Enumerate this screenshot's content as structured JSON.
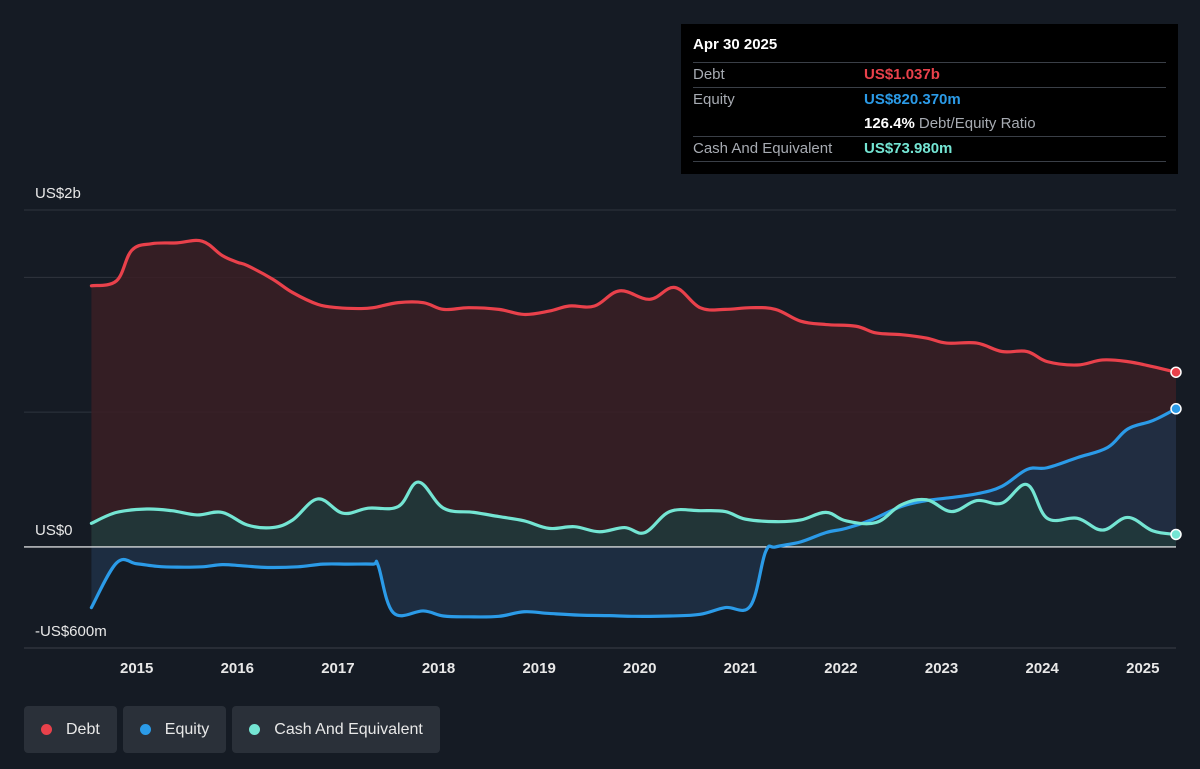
{
  "tooltip": {
    "date": "Apr 30 2025",
    "rows": [
      {
        "label": "Debt",
        "value": "US$1.037b",
        "color": "#e9414b"
      },
      {
        "label": "Equity",
        "value": "US$820.370m",
        "color": "#2b9be8"
      },
      {
        "ratio_value": "126.4%",
        "ratio_label": "Debt/Equity Ratio"
      },
      {
        "label": "Cash And Equivalent",
        "value": "US$73.980m",
        "color": "#74e5d3"
      }
    ]
  },
  "legend": [
    {
      "label": "Debt",
      "color": "#e9414b"
    },
    {
      "label": "Equity",
      "color": "#2b9be8"
    },
    {
      "label": "Cash And Equivalent",
      "color": "#74e5d3"
    }
  ],
  "chart_data": {
    "type": "area",
    "ylim": [
      -600,
      2000
    ],
    "y_tick_labels": [
      {
        "value": 2000,
        "label": "US$2b"
      },
      {
        "value": 0,
        "label": "US$0"
      },
      {
        "value": -600,
        "label": "-US$600m"
      }
    ],
    "x_tick_labels": [
      "2015",
      "2016",
      "2017",
      "2018",
      "2019",
      "2020",
      "2021",
      "2022",
      "2023",
      "2024",
      "2025"
    ],
    "x_ticks": [
      2015,
      2016,
      2017,
      2018,
      2019,
      2020,
      2021,
      2022,
      2023,
      2024,
      2025
    ],
    "xlim": [
      2013.88,
      2025.33
    ],
    "series": [
      {
        "name": "Debt",
        "color": "#e9414b",
        "fill": "#3a1f24",
        "x": [
          2014.55,
          2014.8,
          2014.95,
          2015.15,
          2015.4,
          2015.65,
          2015.85,
          2016.0,
          2016.1,
          2016.35,
          2016.55,
          2016.8,
          2017.0,
          2017.2,
          2017.35,
          2017.6,
          2017.85,
          2018.05,
          2018.3,
          2018.6,
          2018.85,
          2019.1,
          2019.3,
          2019.55,
          2019.8,
          2020.1,
          2020.35,
          2020.6,
          2020.85,
          2021.1,
          2021.35,
          2021.6,
          2021.85,
          2022.15,
          2022.35,
          2022.6,
          2022.85,
          2023.05,
          2023.35,
          2023.6,
          2023.85,
          2024.05,
          2024.35,
          2024.6,
          2024.85,
          2025.1,
          2025.33
        ],
        "values": [
          1550,
          1580,
          1760,
          1800,
          1805,
          1815,
          1730,
          1690,
          1670,
          1590,
          1510,
          1440,
          1420,
          1415,
          1420,
          1450,
          1450,
          1410,
          1420,
          1410,
          1380,
          1400,
          1430,
          1430,
          1520,
          1470,
          1540,
          1420,
          1410,
          1420,
          1410,
          1340,
          1320,
          1310,
          1270,
          1260,
          1240,
          1210,
          1210,
          1160,
          1160,
          1100,
          1080,
          1110,
          1100,
          1070,
          1037
        ]
      },
      {
        "name": "Equity",
        "color": "#2b9be8",
        "fill": "#1e3047",
        "x": [
          2014.55,
          2014.8,
          2015.0,
          2015.2,
          2015.4,
          2015.65,
          2015.85,
          2016.05,
          2016.3,
          2016.6,
          2016.85,
          2017.1,
          2017.35,
          2017.4,
          2017.55,
          2017.85,
          2018.05,
          2018.3,
          2018.6,
          2018.85,
          2019.1,
          2019.4,
          2019.7,
          2019.95,
          2020.3,
          2020.6,
          2020.85,
          2021.1,
          2021.25,
          2021.35,
          2021.6,
          2021.85,
          2022.05,
          2022.3,
          2022.6,
          2022.85,
          2023.05,
          2023.35,
          2023.6,
          2023.85,
          2024.05,
          2024.35,
          2024.65,
          2024.85,
          2025.1,
          2025.33
        ],
        "values": [
          -360,
          -95,
          -100,
          -115,
          -120,
          -118,
          -105,
          -112,
          -122,
          -118,
          -102,
          -102,
          -102,
          -110,
          -390,
          -380,
          -410,
          -415,
          -412,
          -385,
          -395,
          -405,
          -408,
          -412,
          -410,
          -400,
          -360,
          -350,
          -30,
          0,
          30,
          85,
          110,
          160,
          240,
          275,
          290,
          315,
          360,
          460,
          470,
          530,
          590,
          700,
          750,
          820
        ]
      },
      {
        "name": "Cash And Equivalent",
        "color": "#74e5d3",
        "fill": "#203a3b",
        "x": [
          2014.55,
          2014.8,
          2015.1,
          2015.35,
          2015.6,
          2015.85,
          2016.1,
          2016.35,
          2016.55,
          2016.8,
          2017.05,
          2017.3,
          2017.6,
          2017.8,
          2018.05,
          2018.35,
          2018.6,
          2018.85,
          2019.1,
          2019.35,
          2019.6,
          2019.85,
          2020.05,
          2020.3,
          2020.6,
          2020.85,
          2021.05,
          2021.35,
          2021.6,
          2021.85,
          2022.05,
          2022.35,
          2022.6,
          2022.85,
          2023.1,
          2023.35,
          2023.6,
          2023.85,
          2024.05,
          2024.35,
          2024.6,
          2024.85,
          2025.1,
          2025.33
        ],
        "values": [
          140,
          205,
          225,
          215,
          190,
          205,
          130,
          115,
          160,
          285,
          200,
          230,
          240,
          385,
          230,
          205,
          180,
          155,
          110,
          120,
          90,
          115,
          85,
          210,
          215,
          210,
          165,
          150,
          160,
          205,
          155,
          145,
          250,
          280,
          210,
          275,
          260,
          370,
          170,
          170,
          100,
          175,
          95,
          74
        ]
      }
    ]
  }
}
